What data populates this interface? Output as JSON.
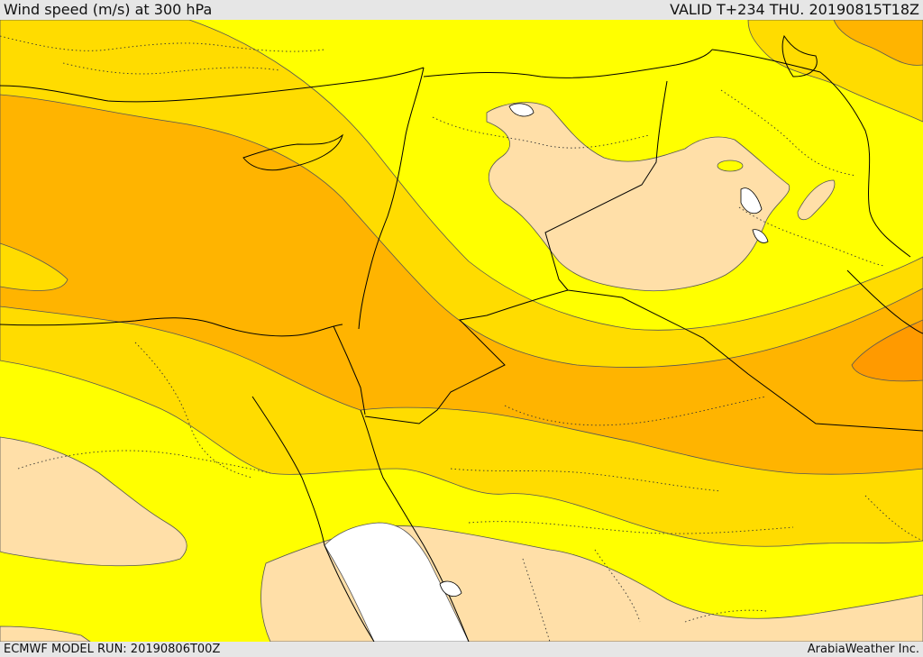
{
  "header": {
    "title": "Wind speed (m/s) at 300 hPa",
    "valid_time": "VALID T+234 THU. 20190815T18Z"
  },
  "footer": {
    "model_run": "ECMWF MODEL RUN: 20190806T00Z",
    "credit": "ArabiaWeather Inc."
  },
  "map": {
    "region": "Eastern Mediterranean and Middle East",
    "colors": {
      "lowest_band": "#ffffff",
      "low_band": "#ffdfa8",
      "mid_band": "#ffff00",
      "higher_band": "#ffdc00",
      "high_band": "#ffb400",
      "highest_band": "#ff9a00",
      "water": "#ffffff",
      "border": "#000000",
      "contour": "#555555"
    }
  }
}
